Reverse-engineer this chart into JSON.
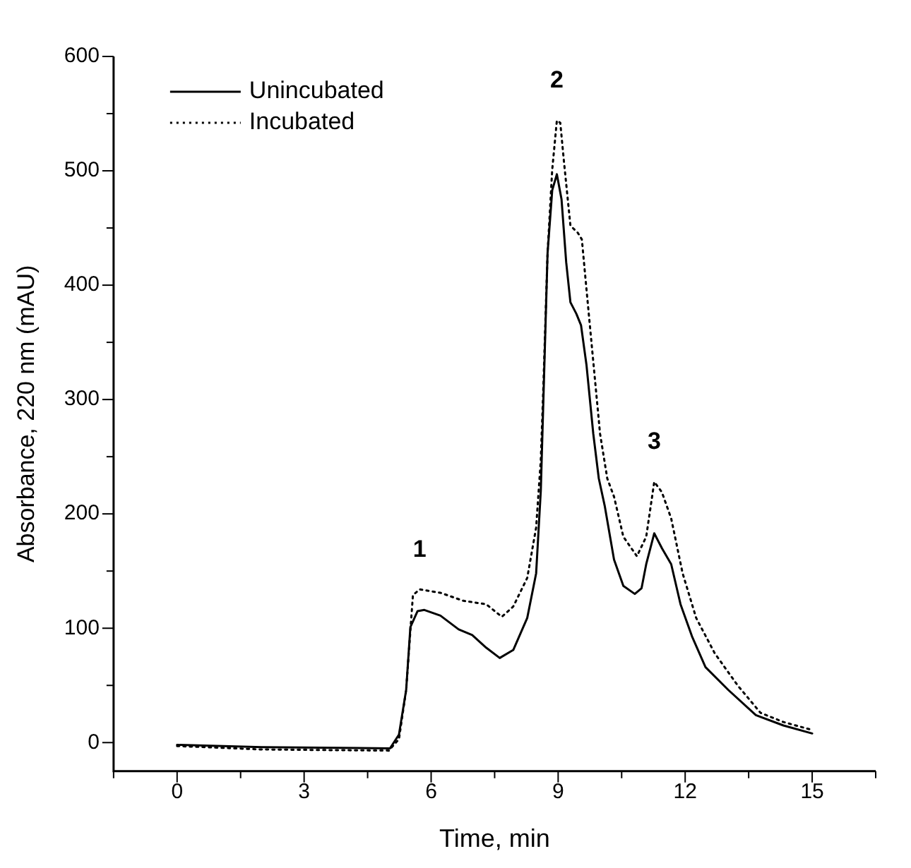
{
  "chart_data": {
    "type": "line",
    "xlabel": "Time, min",
    "ylabel": "Absorbance, 220 nm (mAU)",
    "xlim": [
      -1.5,
      16.5
    ],
    "ylim": [
      -25,
      600
    ],
    "xticks": [
      {
        "value": -1.5,
        "label": null
      },
      0,
      {
        "value": 1.5,
        "label": null
      },
      3,
      {
        "value": 4.5,
        "label": null
      },
      6,
      {
        "value": 7.5,
        "label": null
      },
      9,
      {
        "value": 10.5,
        "label": null
      },
      12,
      {
        "value": 13.5,
        "label": null
      },
      15,
      {
        "value": 16.5,
        "label": null
      }
    ],
    "yticks": [
      0,
      {
        "value": 50,
        "label": null
      },
      100,
      {
        "value": 150,
        "label": null
      },
      200,
      {
        "value": 250,
        "label": null
      },
      300,
      {
        "value": 350,
        "label": null
      },
      400,
      {
        "value": 450,
        "label": null
      },
      500,
      {
        "value": 550,
        "label": null
      },
      600
    ],
    "legend": "top left",
    "grid": false,
    "marker": "none",
    "annotations": [
      {
        "text": "1",
        "x": 5.73,
        "y": 134
      },
      {
        "text": "2",
        "x": 8.97,
        "y": 544
      },
      {
        "text": "3",
        "x": 11.27,
        "y": 228
      }
    ],
    "series": [
      {
        "name": "Unincubated",
        "color": "#000000",
        "line_style": "solid",
        "x": [
          0,
          2,
          5.03,
          5.24,
          5.41,
          5.51,
          5.68,
          5.84,
          6.22,
          6.65,
          6.97,
          7.3,
          7.62,
          7.94,
          8.27,
          8.48,
          8.59,
          8.75,
          8.86,
          8.97,
          9.08,
          9.19,
          9.29,
          9.43,
          9.54,
          9.67,
          9.83,
          9.96,
          10.1,
          10.32,
          10.54,
          10.81,
          10.97,
          11.08,
          11.27,
          11.45,
          11.67,
          11.89,
          12.16,
          12.48,
          13.02,
          13.67,
          14.32,
          15
        ],
        "values": [
          -2,
          -4,
          -5,
          7,
          46,
          101,
          115,
          116,
          111,
          99,
          94,
          83,
          74,
          81,
          109,
          148,
          220,
          428,
          483,
          497,
          475,
          420,
          385,
          375,
          365,
          330,
          270,
          231,
          207,
          160,
          137,
          130,
          135,
          156,
          183,
          170,
          156,
          121,
          93,
          66,
          46,
          24,
          15,
          8
        ]
      },
      {
        "name": "Incubated",
        "color": "#000000",
        "line_style": "dotted",
        "x": [
          0,
          2,
          5,
          5.24,
          5.41,
          5.57,
          5.73,
          6.22,
          6.76,
          7.3,
          7.67,
          7.94,
          8.27,
          8.48,
          8.59,
          8.65,
          8.75,
          8.86,
          8.97,
          9.05,
          9.14,
          9.29,
          9.46,
          9.56,
          9.67,
          9.83,
          9.99,
          10.16,
          10.32,
          10.54,
          10.86,
          11.08,
          11.27,
          11.45,
          11.67,
          11.94,
          12.26,
          12.7,
          13.24,
          13.78,
          14.32,
          15
        ],
        "values": [
          -3,
          -6,
          -7,
          3,
          46,
          129,
          134,
          131,
          124,
          121,
          110,
          119,
          144,
          188,
          247,
          310,
          428,
          501,
          544,
          542,
          507,
          452,
          446,
          440,
          396,
          333,
          270,
          231,
          215,
          180,
          163,
          180,
          228,
          219,
          196,
          148,
          109,
          78,
          50,
          26,
          18,
          11
        ]
      }
    ]
  }
}
